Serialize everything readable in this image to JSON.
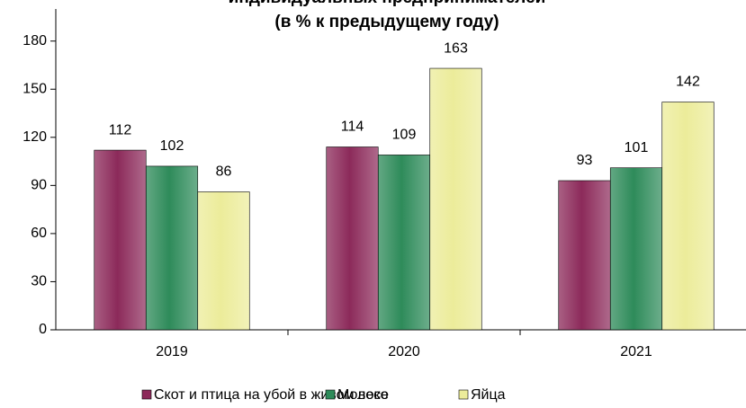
{
  "chart_data": {
    "type": "bar",
    "title": [
      "индивидуальных предпринимателей",
      "(в % к предыдущему году)"
    ],
    "categories": [
      "2019",
      "2020",
      "2021"
    ],
    "series": [
      {
        "name": "Скот и птица на убой в живом весе",
        "color": "#8c2a5a",
        "values": [
          112,
          114,
          93
        ]
      },
      {
        "name": "Молоко",
        "color": "#2e8b5a",
        "values": [
          102,
          109,
          101
        ]
      },
      {
        "name": "Яйца",
        "color": "#ecec9a",
        "values": [
          86,
          163,
          142
        ]
      }
    ],
    "ylim": [
      0,
      200
    ],
    "yticks": [
      0,
      30,
      60,
      90,
      120,
      150,
      180
    ],
    "grid": false,
    "legend": "bottom"
  }
}
